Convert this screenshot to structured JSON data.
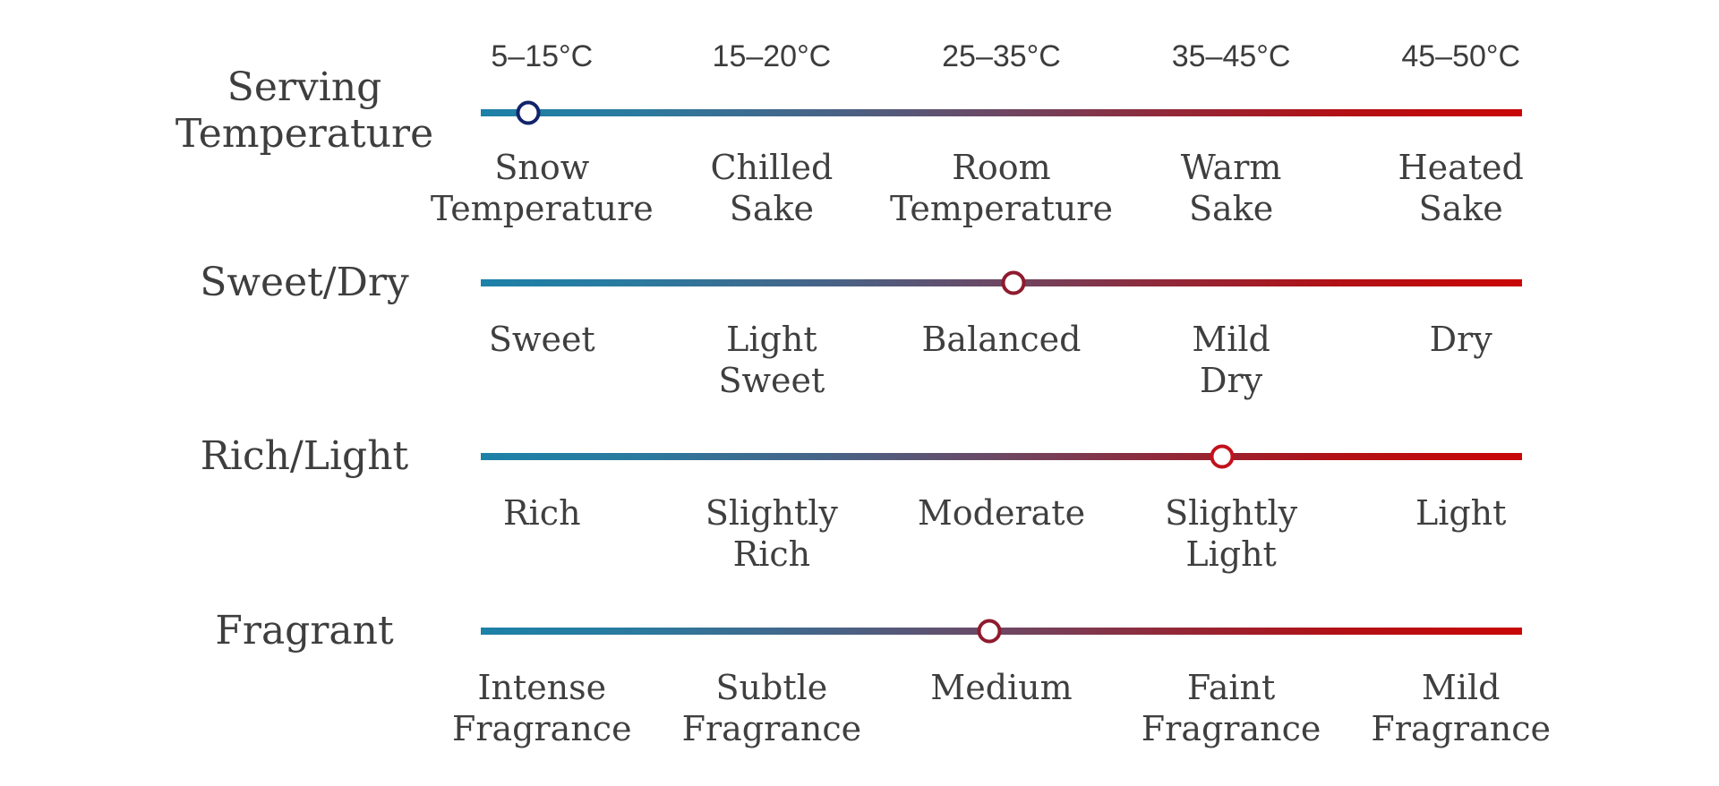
{
  "page": {
    "background": "#ffffff",
    "text_color": "#3e3e3e",
    "bar_gradient_stops": [
      "#1d81a8 0%",
      "#2b7a9f 15%",
      "#4a6184 35%",
      "#6d4763 50%",
      "#8f2a3b 65%",
      "#b11116 82%",
      "#c90707 100%"
    ]
  },
  "rows": [
    {
      "title": "Serving\nTemperature",
      "temps": [
        "5–15°C",
        "15–20°C",
        "25–35°C",
        "35–45°C",
        "45–50°C"
      ],
      "labels": [
        "Snow\nTemperature",
        "Chilled\nSake",
        "Room\nTemperature",
        "Warm\nSake",
        "Heated\nSake"
      ],
      "marker": {
        "percent": 4.6,
        "color": "#11246b",
        "value_label": "Snow Temperature"
      }
    },
    {
      "title": "Sweet/Dry",
      "labels": [
        "Sweet",
        "Light\nSweet",
        "Balanced",
        "Mild\nDry",
        "Dry"
      ],
      "marker": {
        "percent": 51.2,
        "color": "#8e1b2e",
        "value_label": "Balanced"
      }
    },
    {
      "title": "Rich/Light",
      "labels": [
        "Rich",
        "Slightly\nRich",
        "Moderate",
        "Slightly\nLight",
        "Light"
      ],
      "marker": {
        "percent": 71.2,
        "color": "#c2111c",
        "value_label": "Slightly Light"
      }
    },
    {
      "title": "Fragrant",
      "labels": [
        "Intense\nFragrance",
        "Subtle\nFragrance",
        "Medium",
        "Faint\nFragrance",
        "Mild\nFragrance"
      ],
      "marker": {
        "percent": 48.8,
        "color": "#8e1b2e",
        "value_label": "Medium"
      }
    }
  ],
  "chart_data": {
    "type": "table",
    "title": "Sake tasting profile sliders",
    "legend_position": "none",
    "grid": false,
    "rows": [
      {
        "attribute": "Serving Temperature",
        "scale_labels": [
          "Snow Temperature",
          "Chilled Sake",
          "Room Temperature",
          "Warm Sake",
          "Heated Sake"
        ],
        "scale_ranges": [
          "5–15°C",
          "15–20°C",
          "25–35°C",
          "35–45°C",
          "45–50°C"
        ],
        "marker_percent": 4.6,
        "marker_value": "Snow Temperature"
      },
      {
        "attribute": "Sweet/Dry",
        "scale_labels": [
          "Sweet",
          "Light Sweet",
          "Balanced",
          "Mild Dry",
          "Dry"
        ],
        "marker_percent": 51.2,
        "marker_value": "Balanced"
      },
      {
        "attribute": "Rich/Light",
        "scale_labels": [
          "Rich",
          "Slightly Rich",
          "Moderate",
          "Slightly Light",
          "Light"
        ],
        "marker_percent": 71.2,
        "marker_value": "Slightly Light"
      },
      {
        "attribute": "Fragrant",
        "scale_labels": [
          "Intense Fragrance",
          "Subtle Fragrance",
          "Medium",
          "Faint Fragrance",
          "Mild Fragrance"
        ],
        "marker_percent": 48.8,
        "marker_value": "Medium"
      }
    ]
  }
}
